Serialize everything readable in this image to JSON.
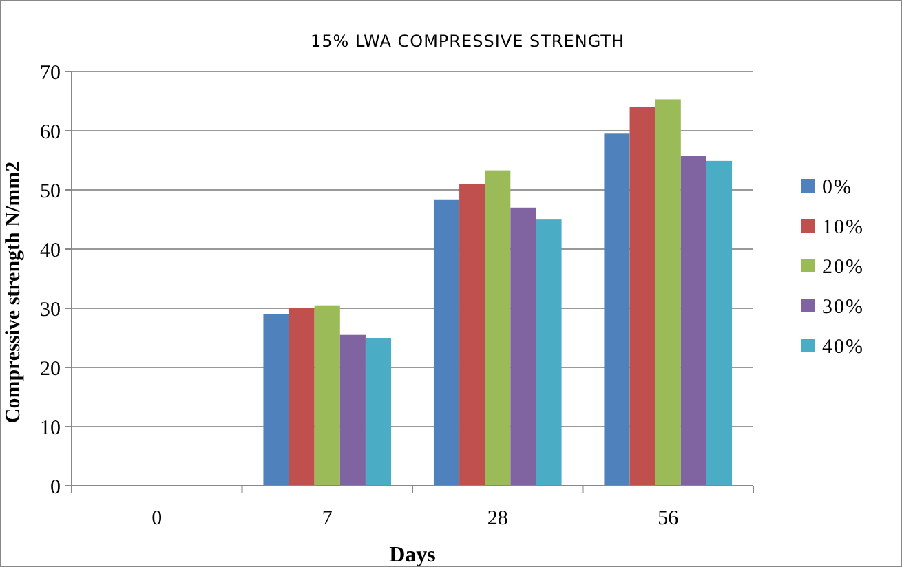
{
  "chart_data": {
    "type": "bar",
    "title": "15%  LWA  COMPRESSIVE  STRENGTH",
    "xlabel": "Days",
    "ylabel": "Compressive strength N/mm2",
    "categories": [
      "0",
      "7",
      "28",
      "56"
    ],
    "series": [
      {
        "name": "0%",
        "color": "#4f81bd",
        "values": [
          0,
          29,
          48.4,
          59.5
        ]
      },
      {
        "name": "10%",
        "color": "#c0504d",
        "values": [
          0,
          30,
          51,
          64
        ]
      },
      {
        "name": "20%",
        "color": "#9bbb59",
        "values": [
          0,
          30.5,
          53.3,
          65.3
        ]
      },
      {
        "name": "30%",
        "color": "#8064a2",
        "values": [
          0,
          25.5,
          47,
          55.8
        ]
      },
      {
        "name": "40%",
        "color": "#4bacc6",
        "values": [
          0,
          25,
          45.1,
          54.9
        ]
      }
    ],
    "ylim": [
      0,
      70
    ],
    "yticks": [
      0,
      10,
      20,
      30,
      40,
      50,
      60,
      70
    ],
    "grid": "y",
    "legend": "right"
  }
}
